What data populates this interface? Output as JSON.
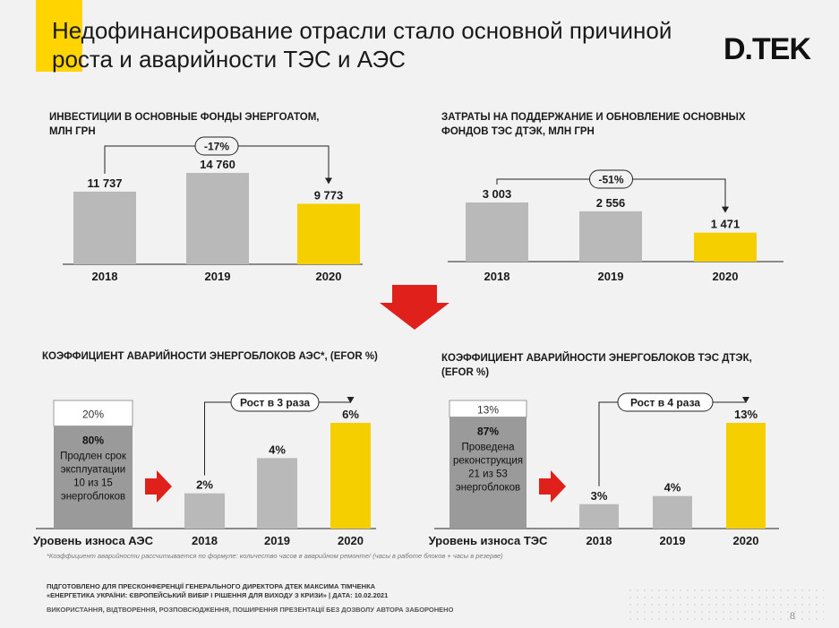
{
  "header": {
    "title_line1": "Недофинансирование отрасли стало основной причиной",
    "title_line2": "роста и аварийности ТЭС и АЭС",
    "logo": "D.TEK",
    "accent_color": "#ffd400"
  },
  "colors": {
    "gray": "#b9b9b9",
    "yellow": "#f5cf00",
    "dark_gray": "#9a9a9a",
    "arrow_red": "#e0201b"
  },
  "chart_data": [
    {
      "type": "bar",
      "title_line1": "ИНВЕСТИЦИИ В ОСНОВНЫЕ ФОНДЫ ЭНЕРГОАТОМ,",
      "title_line2": "МЛН ГРН",
      "categories": [
        "2018",
        "2019",
        "2020"
      ],
      "values": [
        11737,
        14760,
        9773
      ],
      "value_labels": [
        "11 737",
        "14 760",
        "9 773"
      ],
      "highlight": [
        false,
        false,
        true
      ],
      "change_label": "-17%",
      "change_from": 0,
      "change_to": 2
    },
    {
      "type": "bar",
      "title_line1": "ЗАТРАТЫ НА ПОДДЕРЖАНИЕ И ОБНОВЛЕНИЕ ОСНОВНЫХ",
      "title_line2": "ФОНДОВ ТЭС ДТЭК, МЛН ГРН",
      "categories": [
        "2018",
        "2019",
        "2020"
      ],
      "values": [
        3003,
        2556,
        1471
      ],
      "value_labels": [
        "3 003",
        "2 556",
        "1 471"
      ],
      "highlight": [
        false,
        false,
        true
      ],
      "change_label": "-51%",
      "change_from": 0,
      "change_to": 2
    },
    {
      "type": "bar",
      "title_line1": "КОЭФФИЦИЕНТ АВАРИЙНОСТИ ЭНЕРГОБЛОКОВ АЭС*, (EFOR %)",
      "title_line2": "",
      "categories": [
        "2018",
        "2019",
        "2020"
      ],
      "values": [
        2,
        4,
        6
      ],
      "value_labels": [
        "2%",
        "4%",
        "6%"
      ],
      "highlight": [
        false,
        false,
        true
      ],
      "change_label": "Рост в 3 раза",
      "change_from": 0,
      "change_to": 2,
      "wear": {
        "label": "Уровень износа АЭС",
        "top_pct": "20%",
        "bottom_pct": "80%",
        "bottom_value": 80,
        "note_lines": [
          "Продлен срок",
          "эксплуатации",
          "10 из 15",
          "энергоблоков"
        ]
      }
    },
    {
      "type": "bar",
      "title_line1": "КОЭФФИЦИЕНТ АВАРИЙНОСТИ ЭНЕРГОБЛОКОВ ТЭС ДТЭК,",
      "title_line2": "(EFOR %)",
      "categories": [
        "2018",
        "2019",
        "2020"
      ],
      "values": [
        3,
        4,
        13
      ],
      "value_labels": [
        "3%",
        "4%",
        "13%"
      ],
      "highlight": [
        false,
        false,
        true
      ],
      "change_label": "Рост в 4 раза",
      "change_from": 0,
      "change_to": 2,
      "wear": {
        "label": "Уровень износа ТЭС",
        "top_pct": "13%",
        "bottom_pct": "87%",
        "bottom_value": 87,
        "note_lines": [
          "Проведена",
          "реконструкция",
          "21 из 53",
          "энергоблоков"
        ]
      }
    }
  ],
  "footnote": "*Коэффициент аварийности рассчитывается по формуле: количество часов в аварийном ремонте/ (часы в работе блоков + часы в резерве)",
  "footer": {
    "line1": "ПІДГОТОВЛЕНО ДЛЯ ПРЕСКОНФЕРЕНЦІЇ ГЕНЕРАЛЬНОГО ДИРЕКТОРА ДТЕК МАКСИМА ТІМЧЕНКА",
    "line2": "«ЕНЕРГЕТИКА УКРАЇНИ: ЄВРОПЕЙСЬКИЙ ВИБІР І РІШЕННЯ ДЛЯ ВИХОДУ З КРИЗИ» | ДАТА: 10.02.2021",
    "line3": "ВИКОРИСТАННЯ, ВІДТВОРЕННЯ, РОЗПОВСЮДЖЕННЯ, ПОШИРЕННЯ ПРЕЗЕНТАЦІЇ БЕЗ ДОЗВОЛУ АВТОРА ЗАБОРОНЕНО"
  },
  "page_number": "8"
}
